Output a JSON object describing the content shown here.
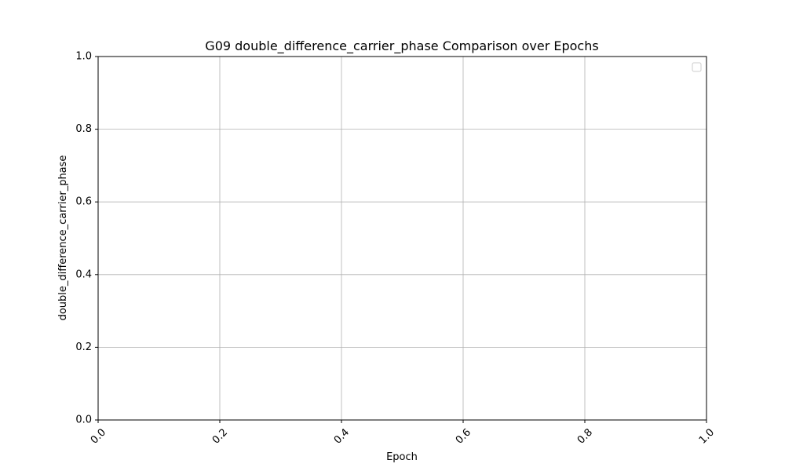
{
  "chart_data": {
    "type": "line",
    "title": "G09 double_difference_carrier_phase Comparison over Epochs",
    "xlabel": "Epoch",
    "ylabel": "double_difference_carrier_phase",
    "xlim": [
      0.0,
      1.0
    ],
    "ylim": [
      0.0,
      1.0
    ],
    "x_ticks": [
      "0.0",
      "0.2",
      "0.4",
      "0.6",
      "0.8",
      "1.0"
    ],
    "y_ticks": [
      "0.0",
      "0.2",
      "0.4",
      "0.6",
      "0.8",
      "1.0"
    ],
    "x_tick_rotation": -45,
    "grid": true,
    "legend": {
      "position": "top-right",
      "entries": []
    },
    "series": []
  }
}
